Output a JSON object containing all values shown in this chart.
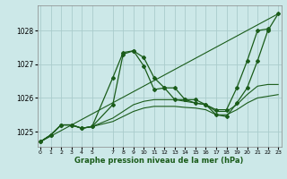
{
  "xlabel": "Graphe pression niveau de la mer (hPa)",
  "background_color": "#cce8e8",
  "grid_color": "#aacccc",
  "line_color": "#1a5c1a",
  "ylim": [
    1024.55,
    1028.75
  ],
  "xlim": [
    -0.3,
    23.3
  ],
  "yticks": [
    1025,
    1026,
    1027,
    1028
  ],
  "xticks": [
    0,
    1,
    2,
    3,
    4,
    5,
    7,
    8,
    9,
    10,
    11,
    12,
    13,
    14,
    15,
    16,
    17,
    18,
    19,
    20,
    21,
    22,
    23
  ],
  "series": [
    {
      "x": [
        0,
        1,
        2,
        3,
        4,
        5,
        7,
        8,
        9,
        10,
        11,
        12,
        13,
        14,
        15,
        16,
        17,
        18,
        19,
        20,
        21,
        22,
        23
      ],
      "y": [
        1024.7,
        1024.9,
        1025.2,
        1025.2,
        1025.1,
        1025.15,
        1026.6,
        1027.35,
        1027.4,
        1026.95,
        1026.25,
        1026.3,
        1025.95,
        1025.95,
        1025.85,
        1025.8,
        1025.5,
        1025.45,
        1025.85,
        1026.3,
        1027.1,
        1028.0,
        1028.5
      ],
      "marker": true,
      "lw": 0.9
    },
    {
      "x": [
        0,
        1,
        2,
        3,
        4,
        5,
        7,
        8,
        9,
        10,
        11,
        12,
        13,
        14,
        15,
        16,
        17,
        18,
        19,
        20,
        21,
        22
      ],
      "y": [
        1024.7,
        1024.9,
        1025.2,
        1025.2,
        1025.1,
        1025.15,
        1025.8,
        1027.3,
        1027.4,
        1027.2,
        1026.6,
        1026.3,
        1026.3,
        1025.95,
        1025.95,
        1025.8,
        1025.65,
        1025.65,
        1026.3,
        1027.1,
        1028.0,
        1028.05
      ],
      "marker": true,
      "lw": 0.9
    },
    {
      "x": [
        0,
        23
      ],
      "y": [
        1024.7,
        1028.5
      ],
      "marker": false,
      "lw": 0.8
    },
    {
      "x": [
        0,
        1,
        2,
        3,
        4,
        5,
        7,
        8,
        9,
        10,
        11,
        12,
        13,
        14,
        15,
        16,
        17,
        18,
        19,
        20,
        21,
        22,
        23
      ],
      "y": [
        1024.7,
        1024.9,
        1025.2,
        1025.2,
        1025.1,
        1025.15,
        1025.4,
        1025.6,
        1025.8,
        1025.9,
        1025.95,
        1025.95,
        1025.95,
        1025.9,
        1025.85,
        1025.8,
        1025.6,
        1025.6,
        1025.8,
        1026.1,
        1026.35,
        1026.4,
        1026.4
      ],
      "marker": false,
      "lw": 0.8
    },
    {
      "x": [
        0,
        1,
        2,
        3,
        4,
        5,
        7,
        8,
        9,
        10,
        11,
        12,
        13,
        14,
        15,
        16,
        17,
        18,
        19,
        20,
        21,
        22,
        23
      ],
      "y": [
        1024.7,
        1024.9,
        1025.2,
        1025.2,
        1025.1,
        1025.15,
        1025.3,
        1025.45,
        1025.6,
        1025.7,
        1025.75,
        1025.75,
        1025.75,
        1025.72,
        1025.7,
        1025.65,
        1025.5,
        1025.5,
        1025.65,
        1025.85,
        1026.0,
        1026.05,
        1026.1
      ],
      "marker": false,
      "lw": 0.8
    }
  ]
}
